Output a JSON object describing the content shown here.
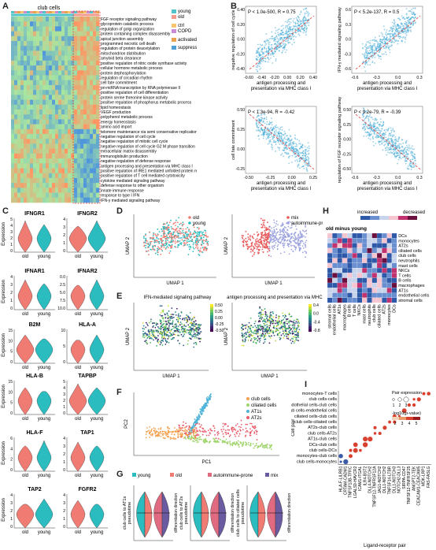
{
  "panels": {
    "A": "A",
    "B": "B",
    "C": "C",
    "D": "D",
    "E": "E",
    "F": "F",
    "G": "G",
    "H": "H",
    "I": "I"
  },
  "panelA": {
    "title": "club cells",
    "legend": [
      "young",
      "old",
      "ctrl",
      "COPD",
      "activated",
      "suppressed"
    ],
    "legend_colors": [
      "#4fc3c8",
      "#f39a8e",
      "#f7c56f",
      "#c98bd6",
      "#e8a24d",
      "#4f9fd6"
    ],
    "terms": [
      "FGF receptor signaling pathway",
      "glycoprotein catabolic process",
      "regulation of golgi organization",
      "protein containing complex disassembly",
      "apical junction assembly",
      "programmed necrotic cell death",
      "regulation of protein deacetylation",
      "mitochondrion distribution",
      "amyloid beta clearance",
      "positive regulation of nitric oxide synthase activity",
      "cellular hormone metabolic process",
      "protein dephosphorylation",
      "regulation of circadian rhythm",
      "cell fate commitment",
      "pri-miRNA transcription by RNA polymerase II",
      "positive regulation of cell differentiation",
      "protein serine threonine kinase activity",
      "positive regulation of phosphorus metabolic process",
      "lipid homeostasis",
      "VEGF production",
      "polyphenol metabolic process",
      "energy homeostasis",
      "amino acid import",
      "telomere maintenance via semi conservative replication",
      "negative regulation of cell cycle",
      "negative regulation of mitotic cell cycle",
      "negative regulation of cell cycle G2 M phase transition",
      "extracellular matrix disassembly",
      "immunoglobulin production",
      "negative regulation of defense response",
      "antigen processing and presentation via MHC class I",
      "positive regulation of IRE1 mediated unfolded protein response",
      "positive regulation of T cell mediated cytotoxicity",
      "cytokine mediated signaling pathway",
      "defense response to other organism",
      "innate immune response",
      "response to type I IFN",
      "IFN-γ mediated signaling pathway"
    ]
  },
  "panelB": {
    "plots": [
      {
        "stat": "P < 1.0e-500, R = 0.75",
        "ylabel": "negative regulation of cell cycle",
        "xlabel": "antigen processing and presentation via MHC class I",
        "xticks": [
          "-0.60",
          "-0.40",
          "-0.20",
          "0.00",
          "0.20",
          "0.40"
        ],
        "yticks": [
          "0.40",
          "0.20",
          "0.00",
          "-0.20",
          "-0.40"
        ]
      },
      {
        "stat": "P < 5.2e-137, R = 0.5",
        "ylabel": "IFN-γ mediated signaling pathway",
        "xlabel": "antigen processing and presentation via MHC class I",
        "xticks": [
          "-0.6",
          "-0.3",
          "0.0",
          "0.3"
        ],
        "yticks": [
          "0.6",
          "0.3",
          "0.0",
          "-0.3",
          "-0.6"
        ]
      },
      {
        "stat": "P < 1.3e-94, R = -0.42",
        "ylabel": "cell fate commitment",
        "xlabel": "antigen processing and presentation via MHC class I",
        "xticks": [
          "-0.50",
          "-0.25",
          "0.00",
          "0.25"
        ],
        "yticks": [
          "0.50",
          "0.25",
          "0.00",
          "-0.25"
        ]
      },
      {
        "stat": "P < 9.2e-79, R = -0.39",
        "ylabel": "regulation of FGF receptor signaling pathway",
        "xlabel": "antigen processing and presentation via MHC class I",
        "xticks": [
          "-0.6",
          "-0.3",
          "0.0",
          "0.3"
        ],
        "yticks": [
          "0.50",
          "0.25",
          "0.00",
          "-0.25",
          "-0.50"
        ]
      }
    ]
  },
  "panelC": {
    "ylabel": "Expression",
    "xcats": [
      "old",
      "young"
    ],
    "genes": [
      {
        "name": "IFNGR1",
        "yticks": [
          "5",
          "4",
          "3",
          "2",
          "1",
          "0"
        ]
      },
      {
        "name": "IFNGR2",
        "yticks": [
          "4",
          "3",
          "2",
          "1",
          "0"
        ]
      },
      {
        "name": "IFNAR1",
        "yticks": [
          "4",
          "3",
          "2",
          "1",
          "0"
        ]
      },
      {
        "name": "IFNAR2",
        "yticks": [
          "0.0",
          "2.5",
          "5.0",
          "7.5",
          "10.0"
        ]
      },
      {
        "name": "B2M",
        "yticks": [
          "15",
          "10",
          "5",
          "0"
        ]
      },
      {
        "name": "HLA-A",
        "yticks": [
          "10",
          "5",
          "0"
        ]
      },
      {
        "name": "HLA-B",
        "yticks": [
          "15",
          "10",
          "5",
          "0"
        ]
      },
      {
        "name": "TAPBP",
        "yticks": [
          "5",
          "4",
          "3",
          "2",
          "1",
          "0"
        ]
      },
      {
        "name": "HLA-F",
        "yticks": [
          "6",
          "4",
          "2",
          "0"
        ]
      },
      {
        "name": "TAP1",
        "yticks": [
          "4",
          "3",
          "2",
          "1",
          "0"
        ]
      },
      {
        "name": "TAP2",
        "yticks": [
          "4",
          "3",
          "2",
          "1",
          "0"
        ]
      },
      {
        "name": "FGFR2",
        "yticks": [
          "4",
          "3",
          "2",
          "1",
          "0"
        ]
      }
    ]
  },
  "panelD": {
    "xlabel": "UMAP 1",
    "ylabel": "UMAP 2",
    "legend1": [
      "old",
      "young"
    ],
    "legend2": [
      "mix",
      "autoimmune-prone"
    ]
  },
  "panelE": {
    "title1": "IFN-mediated signaling pathway",
    "title2": "antigen processing and presentation via MHC I",
    "xlabel": "UMAP 1",
    "ylabel": "UMAP 2",
    "ticks1": [
      "0.50",
      "0.25",
      "0.00",
      "-0.25",
      "-0.50"
    ],
    "ticks2": [
      "0.4",
      "0.0",
      "-0.4",
      "-0.8"
    ]
  },
  "panelF": {
    "xlabel": "PC1",
    "ylabel": "PC2",
    "legend": [
      "club cells",
      "ciliated cells",
      "AT1s",
      "AT2s"
    ],
    "colors": [
      "#f6a04d",
      "#a0d46b",
      "#4fb3d9",
      "#e85b6a"
    ]
  },
  "panelG": {
    "legend": [
      "young",
      "old",
      "autoimmune-prone",
      "mix"
    ],
    "colors": [
      "#2bbcbf",
      "#f07b72",
      "#e06b80",
      "#6a5aa0"
    ],
    "ylabels": [
      "club cells to AT1s pseudotime",
      "club cells to AT2s pseudotime",
      "club cells to ciliated cells pseudotime"
    ],
    "rlabel": "differentiation direction"
  },
  "panelH": {
    "title": "old minus young",
    "legend_low": "increased",
    "legend_high": "decreased",
    "rows": [
      "DCs",
      "monocytes",
      "AT2s",
      "ciliated cells",
      "club cells",
      "neutrophils",
      "mast cells",
      "NKCs",
      "T cells",
      "B cells",
      "macrophages",
      "AT1s",
      "endothelial cells",
      "stromal cells"
    ],
    "cols": [
      "stromal cells",
      "endothelial cells",
      "AT1s",
      "macrophages",
      "B cells",
      "T cells",
      "NKCs",
      "mast cells",
      "neutrophils",
      "club cells",
      "ciliated cells",
      "AT2s",
      "monocytes",
      "DCs"
    ]
  },
  "panelI": {
    "ylabel": "Cell pair",
    "xlabel": "Ligand-receptor pair",
    "legend_title": "Pair expression",
    "legend_sizes": [
      "1",
      "2",
      "3"
    ],
    "pval_title": "-log10(p-value)",
    "pval_ticks": [
      "2",
      "3",
      "4",
      "5"
    ],
    "pairs": [
      "monocytes-T cells",
      "club cells-cells",
      "endothelial cells-club cells",
      "club cells-endothelial cells",
      "ciliated cells-club cells",
      "club cells-ciliated cells",
      "AT2s-club cells",
      "club cells-AT2s",
      "AT1s-club cells",
      "DCs-club cells",
      "club cells-DCs",
      "monocytes-club cells",
      "club cells-monocytes"
    ],
    "lr": [
      "HLA-F-LILRB1",
      "CRTAM-CADM1",
      "TNFSF13B-TFRC",
      "LGALS9-HAVCR2",
      "ICAM1-ITGAL",
      "ILR4-BST2",
      "DLL4-NOTCH2",
      "TNFSF12-TNFRSF12A",
      "JAG1-NOTCH2",
      "DLL1-NOTCH2",
      "TNFSF14-LTBR",
      "DLL1-NOTCH3",
      "NOTCH2-DLL3",
      "SIRPA-CD47",
      "TNFSF12-TNFRSF25",
      "ANGPT2-TEK",
      "CEACAM1-CEACAM5",
      "MDK-LRP1",
      "FAS-FASLG"
    ]
  }
}
